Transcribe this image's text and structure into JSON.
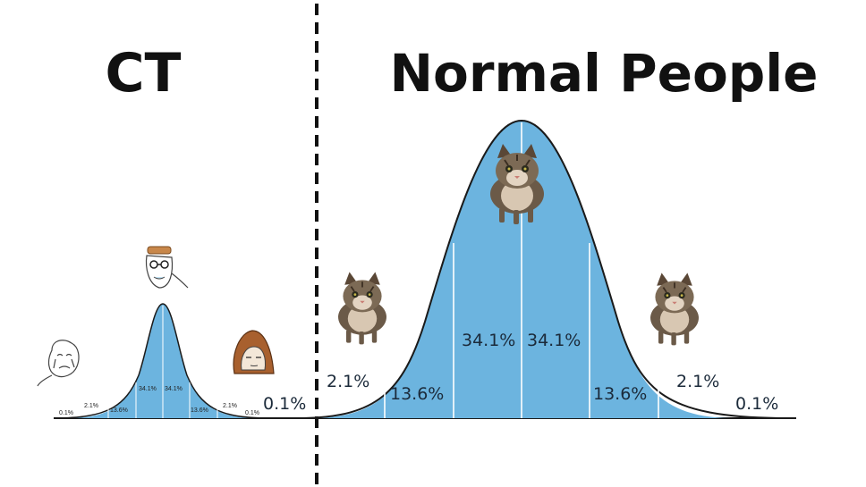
{
  "titles": {
    "left": "CT",
    "right": "Normal People"
  },
  "left_curve": {
    "labels": [
      "0.1%",
      "2.1%",
      "13.6%",
      "34.1%",
      "34.1%",
      "13.6%",
      "2.1%",
      "0.1%"
    ],
    "figures": [
      "crying-wojak",
      "nerd-wojak",
      "hooded-wojak"
    ]
  },
  "right_curve": {
    "labels": [
      "0.1%",
      "2.1%",
      "13.6%",
      "34.1%",
      "34.1%",
      "13.6%",
      "2.1%",
      "0.1%"
    ],
    "figures": [
      "cat",
      "cat",
      "cat"
    ]
  },
  "colors": {
    "curve_fill": "#6cb4df",
    "curve_stroke": "#1a1a1a",
    "divider": "#111111"
  }
}
